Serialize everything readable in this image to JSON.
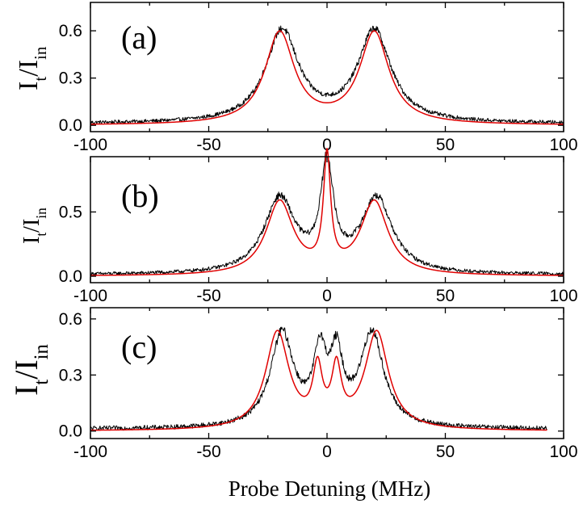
{
  "figure": {
    "xlabel": "Probe Detuning (MHz)"
  },
  "chart_data": [
    {
      "type": "line",
      "panel_label": "(a)",
      "ylabel": {
        "main": "I",
        "sub1": "t",
        "slash": "/I",
        "sub2": "in"
      },
      "xlabel": "",
      "xlim": [
        -100,
        100
      ],
      "ylim": [
        -0.04,
        0.78
      ],
      "xticks": [
        -100,
        -50,
        0,
        50,
        100
      ],
      "xtick_labels": [
        "-100",
        "-50",
        "0",
        "50",
        "100"
      ],
      "yticks": [
        0.0,
        0.3,
        0.6
      ],
      "ytick_labels": [
        "0.0",
        "0.3",
        "0.6"
      ],
      "grid": false,
      "legend": "none",
      "series": [
        {
          "role": "measured",
          "color": "#000000",
          "x_range": [
            -100,
            100
          ],
          "peaks": [
            {
              "center": -19,
              "height": 0.58,
              "width": 8.5
            },
            {
              "center": 20,
              "height": 0.58,
              "width": 8.5
            }
          ],
          "baseline": 0.01,
          "noise": 0.022
        },
        {
          "role": "fit",
          "color": "#e00000",
          "x_range": [
            -100,
            100
          ],
          "peaks": [
            {
              "center": -20,
              "height": 0.58,
              "width": 7.5
            },
            {
              "center": 20,
              "height": 0.58,
              "width": 7.5
            }
          ],
          "baseline": 0.0,
          "noise": 0
        }
      ]
    },
    {
      "type": "line",
      "panel_label": "(b)",
      "ylabel": {
        "main": "I",
        "sub1": "t",
        "slash": "/I",
        "sub2": "in"
      },
      "xlabel": "",
      "xlim": [
        -100,
        100
      ],
      "ylim": [
        -0.05,
        0.93
      ],
      "xticks": [
        -100,
        -50,
        0,
        50,
        100
      ],
      "xtick_labels": [
        "-100",
        "-50",
        "0",
        "50",
        "100"
      ],
      "yticks": [
        0.0,
        0.5
      ],
      "ytick_labels": [
        "0.0",
        "0.5"
      ],
      "grid": false,
      "legend": "none",
      "series": [
        {
          "role": "measured",
          "color": "#000000",
          "x_range": [
            -100,
            100
          ],
          "peaks": [
            {
              "center": -20,
              "height": 0.58,
              "width": 8
            },
            {
              "center": 0,
              "height": 0.8,
              "width": 3.2
            },
            {
              "center": 21,
              "height": 0.58,
              "width": 8
            }
          ],
          "baseline": 0.01,
          "noise": 0.026
        },
        {
          "role": "fit",
          "color": "#e00000",
          "x_range": [
            -100,
            100
          ],
          "peaks": [
            {
              "center": -20,
              "height": 0.57,
              "width": 7
            },
            {
              "center": 0,
              "height": 0.87,
              "width": 1.8
            },
            {
              "center": 20,
              "height": 0.57,
              "width": 7
            }
          ],
          "baseline": 0.0,
          "noise": 0
        }
      ]
    },
    {
      "type": "line",
      "panel_label": "(c)",
      "ylabel": {
        "main": "I",
        "sub1": "t",
        "slash": "/I",
        "sub2": "in"
      },
      "xlabel": "",
      "xlim": [
        -100,
        100
      ],
      "ylim": [
        -0.04,
        0.66
      ],
      "xticks": [
        -100,
        -50,
        0,
        50,
        100
      ],
      "xtick_labels": [
        "-100",
        "-50",
        "0",
        "50",
        "100"
      ],
      "yticks": [
        0.0,
        0.3,
        0.6
      ],
      "ytick_labels": [
        "0.0",
        "0.3",
        "0.6"
      ],
      "grid": false,
      "legend": "none",
      "series": [
        {
          "role": "measured",
          "color": "#000000",
          "x_range": [
            -100,
            93
          ],
          "peaks": [
            {
              "center": -19,
              "height": 0.5,
              "width": 6
            },
            {
              "center": -3,
              "height": 0.36,
              "width": 3.2
            },
            {
              "center": 4,
              "height": 0.34,
              "width": 3.2
            },
            {
              "center": 19,
              "height": 0.5,
              "width": 6
            }
          ],
          "baseline": 0.01,
          "noise": 0.024
        },
        {
          "role": "fit",
          "color": "#e00000",
          "x_range": [
            -100,
            93
          ],
          "peaks": [
            {
              "center": -21,
              "height": 0.52,
              "width": 6
            },
            {
              "center": -4,
              "height": 0.29,
              "width": 2.4
            },
            {
              "center": 4,
              "height": 0.29,
              "width": 2.4
            },
            {
              "center": 21,
              "height": 0.52,
              "width": 6
            }
          ],
          "baseline": 0.0,
          "noise": 0
        }
      ]
    }
  ]
}
